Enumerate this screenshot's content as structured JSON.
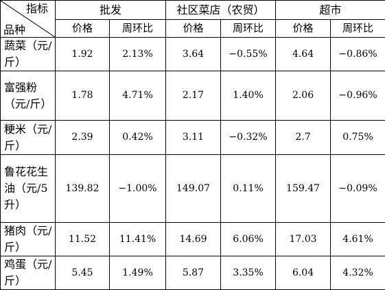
{
  "corner": {
    "top": "指标",
    "bottom": "品种"
  },
  "groups": [
    "批发",
    "社区菜店（农贸）",
    "超市"
  ],
  "subheaders": [
    "价格",
    "周环比",
    "价格",
    "周环比",
    "价格",
    "周环比"
  ],
  "rows": [
    {
      "product": "蔬菜（元/斤）",
      "cells": [
        "1.92",
        "2.13%",
        "3.64",
        "−0.55%",
        "4.64",
        "−0.86%"
      ]
    },
    {
      "product": "富强粉（元/斤）",
      "cells": [
        "1.78",
        "4.71%",
        "2.17",
        "1.40%",
        "2.06",
        "−0.96%"
      ]
    },
    {
      "product": "粳米（元/斤）",
      "cells": [
        "2.39",
        "0.42%",
        "3.11",
        "−0.32%",
        "2.7",
        "0.75%"
      ]
    },
    {
      "product": "鲁花花生油（元/5升）",
      "cells": [
        "139.82",
        "−1.00%",
        "149.07",
        "0.11%",
        "159.47",
        "−0.09%"
      ]
    },
    {
      "product": "猪肉（元/斤）",
      "cells": [
        "11.52",
        "11.41%",
        "14.69",
        "6.06%",
        "17.03",
        "4.61%"
      ]
    },
    {
      "product": "鸡蛋（元/斤）",
      "cells": [
        "5.45",
        "1.49%",
        "5.87",
        "3.35%",
        "6.04",
        "4.32%"
      ]
    }
  ]
}
